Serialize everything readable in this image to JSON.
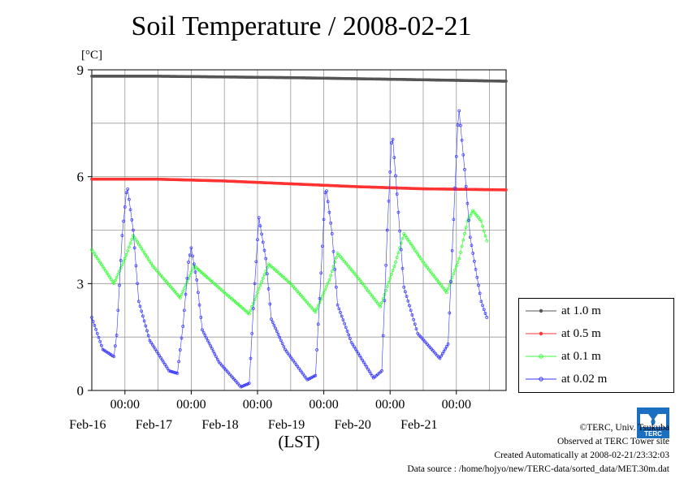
{
  "chart_data": {
    "type": "line",
    "title": "Soil Temperature / 2008-02-21",
    "ylabel": "[°C]",
    "xlabel": "(LST)",
    "ylim": [
      0,
      9
    ],
    "yticks": [
      "0",
      "3",
      "6",
      "9"
    ],
    "xlim": [
      "2008-02-15 12:00",
      "2008-02-21 18:00"
    ],
    "time_ticks": [
      "00:00",
      "00:00",
      "00:00",
      "00:00",
      "00:00",
      "00:00"
    ],
    "date_ticks": [
      "Feb-16",
      "Feb-17",
      "Feb-18",
      "Feb-19",
      "Feb-20",
      "Feb-21"
    ],
    "grid": true,
    "legend_position": "right",
    "series": [
      {
        "name": "at 1.0 m",
        "color": "#555555",
        "points": [
          [
            "2008-02-15 12:00",
            8.82
          ],
          [
            "2008-02-16 12:00",
            8.82
          ],
          [
            "2008-02-17 12:00",
            8.8
          ],
          [
            "2008-02-18 12:00",
            8.78
          ],
          [
            "2008-02-19 12:00",
            8.75
          ],
          [
            "2008-02-20 12:00",
            8.72
          ],
          [
            "2008-02-21 18:00",
            8.68
          ]
        ]
      },
      {
        "name": "at 0.5 m",
        "color": "#ff3333",
        "points": [
          [
            "2008-02-15 12:00",
            5.93
          ],
          [
            "2008-02-16 12:00",
            5.93
          ],
          [
            "2008-02-17 12:00",
            5.88
          ],
          [
            "2008-02-18 12:00",
            5.8
          ],
          [
            "2008-02-19 12:00",
            5.72
          ],
          [
            "2008-02-20 12:00",
            5.66
          ],
          [
            "2008-02-21 18:00",
            5.63
          ]
        ]
      },
      {
        "name": "at 0.1 m",
        "color": "#33ff33",
        "points": [
          [
            "2008-02-15 12:00",
            3.95
          ],
          [
            "2008-02-15 20:00",
            3.0
          ],
          [
            "2008-02-16 00:00",
            3.7
          ],
          [
            "2008-02-16 03:00",
            4.35
          ],
          [
            "2008-02-16 10:00",
            3.5
          ],
          [
            "2008-02-16 20:00",
            2.6
          ],
          [
            "2008-02-17 01:00",
            3.5
          ],
          [
            "2008-02-17 12:00",
            2.75
          ],
          [
            "2008-02-17 21:00",
            2.15
          ],
          [
            "2008-02-18 04:00",
            3.55
          ],
          [
            "2008-02-18 12:00",
            3.0
          ],
          [
            "2008-02-18 21:00",
            2.2
          ],
          [
            "2008-02-19 02:00",
            3.1
          ],
          [
            "2008-02-19 05:00",
            3.85
          ],
          [
            "2008-02-19 12:00",
            3.2
          ],
          [
            "2008-02-19 20:30",
            2.35
          ],
          [
            "2008-02-20 02:00",
            3.6
          ],
          [
            "2008-02-20 05:00",
            4.4
          ],
          [
            "2008-02-20 12:00",
            3.6
          ],
          [
            "2008-02-20 20:30",
            2.75
          ],
          [
            "2008-02-21 01:00",
            3.7
          ],
          [
            "2008-02-21 04:00",
            4.75
          ],
          [
            "2008-02-21 06:00",
            5.05
          ],
          [
            "2008-02-21 09:00",
            4.75
          ],
          [
            "2008-02-21 11:00",
            4.2
          ]
        ]
      },
      {
        "name": "at 0.02 m",
        "color": "#3333ff",
        "points": [
          [
            "2008-02-15 12:00",
            2.05
          ],
          [
            "2008-02-15 16:00",
            1.15
          ],
          [
            "2008-02-15 20:00",
            0.95
          ],
          [
            "2008-02-15 21:00",
            1.55
          ],
          [
            "2008-02-15 23:00",
            4.35
          ],
          [
            "2008-02-16 00:30",
            5.55
          ],
          [
            "2008-02-16 01:00",
            5.65
          ],
          [
            "2008-02-16 03:00",
            4.5
          ],
          [
            "2008-02-16 05:00",
            2.5
          ],
          [
            "2008-02-16 09:00",
            1.4
          ],
          [
            "2008-02-16 16:00",
            0.55
          ],
          [
            "2008-02-16 19:00",
            0.48
          ],
          [
            "2008-02-16 21:00",
            1.8
          ],
          [
            "2008-02-16 23:00",
            3.6
          ],
          [
            "2008-02-17 00:00",
            4.0
          ],
          [
            "2008-02-17 02:00",
            3.1
          ],
          [
            "2008-02-17 04:00",
            1.7
          ],
          [
            "2008-02-17 10:00",
            0.8
          ],
          [
            "2008-02-17 18:00",
            0.1
          ],
          [
            "2008-02-17 21:00",
            0.2
          ],
          [
            "2008-02-17 23:00",
            3.0
          ],
          [
            "2008-02-18 00:30",
            4.85
          ],
          [
            "2008-02-18 03:00",
            3.7
          ],
          [
            "2008-02-18 05:00",
            2.0
          ],
          [
            "2008-02-18 10:00",
            1.15
          ],
          [
            "2008-02-18 18:00",
            0.3
          ],
          [
            "2008-02-18 21:00",
            0.42
          ],
          [
            "2008-02-18 23:00",
            3.3
          ],
          [
            "2008-02-19 00:30",
            5.55
          ],
          [
            "2008-02-19 01:00",
            5.6
          ],
          [
            "2008-02-19 03:00",
            4.4
          ],
          [
            "2008-02-19 05:00",
            2.4
          ],
          [
            "2008-02-19 10:00",
            1.35
          ],
          [
            "2008-02-19 18:00",
            0.35
          ],
          [
            "2008-02-19 21:00",
            0.55
          ],
          [
            "2008-02-19 23:00",
            4.5
          ],
          [
            "2008-02-20 00:30",
            6.95
          ],
          [
            "2008-02-20 01:00",
            7.05
          ],
          [
            "2008-02-20 03:00",
            5.0
          ],
          [
            "2008-02-20 05:00",
            2.9
          ],
          [
            "2008-02-20 10:00",
            1.6
          ],
          [
            "2008-02-20 18:00",
            0.9
          ],
          [
            "2008-02-20 21:00",
            1.3
          ],
          [
            "2008-02-20 23:00",
            4.8
          ],
          [
            "2008-02-21 00:30",
            7.45
          ],
          [
            "2008-02-21 01:00",
            7.85
          ],
          [
            "2008-02-21 03:00",
            6.2
          ],
          [
            "2008-02-21 05:00",
            4.3
          ],
          [
            "2008-02-21 09:00",
            2.5
          ],
          [
            "2008-02-21 11:00",
            2.05
          ]
        ]
      }
    ]
  },
  "footer": {
    "copyright": "©TERC, Univ. Tsukuba",
    "observed": "Observed at TERC Tower site",
    "created": "Created Automatically at 2008-02-21/23:32:03",
    "source": "Data source : /home/hojyo/new/TERC-data/sorted_data/MET.30m.dat"
  },
  "logo": {
    "text": "TERC",
    "color": "#1a6fc0"
  }
}
